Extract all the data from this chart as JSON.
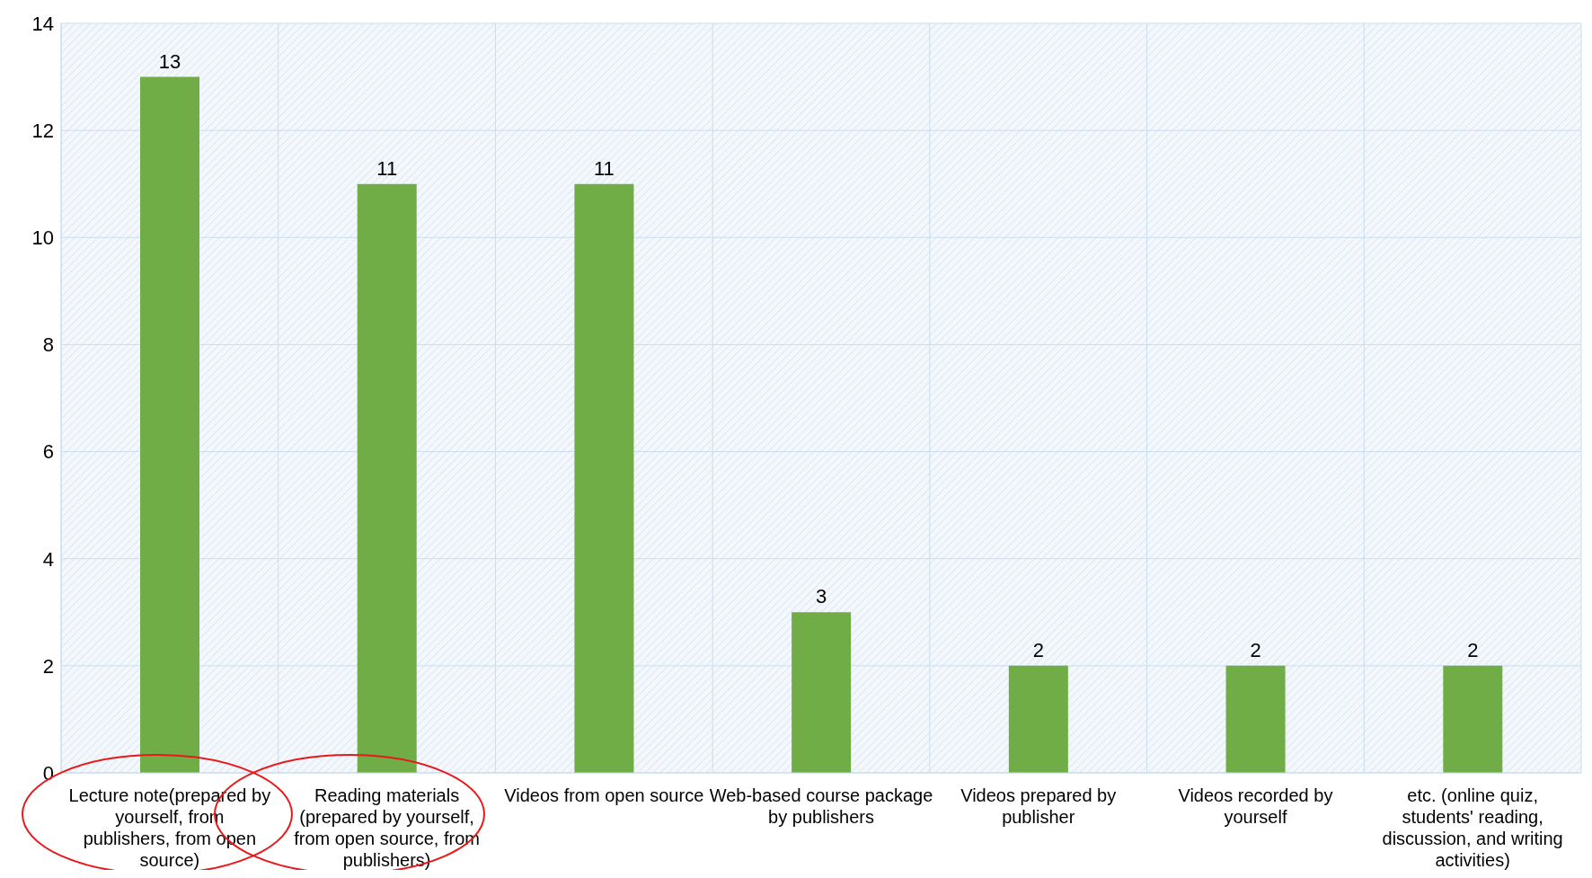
{
  "chart_data": {
    "type": "bar",
    "categories": [
      "Lecture note(prepared by yourself, from publishers, from open source)",
      "Reading materials (prepared by yourself, from open source, from publishers)",
      "Videos from open source",
      "Web-based course package by publishers",
      "Videos prepared by publisher",
      "Videos recorded by yourself",
      "etc. (online quiz, students' reading, discussion, and writing activities)"
    ],
    "values": [
      13,
      11,
      11,
      3,
      2,
      2,
      2
    ],
    "color": "#70ad47",
    "ylim": [
      0,
      14
    ],
    "yticks": [
      0,
      2,
      4,
      6,
      8,
      10,
      12,
      14
    ],
    "grid": true,
    "data_labels": true
  }
}
